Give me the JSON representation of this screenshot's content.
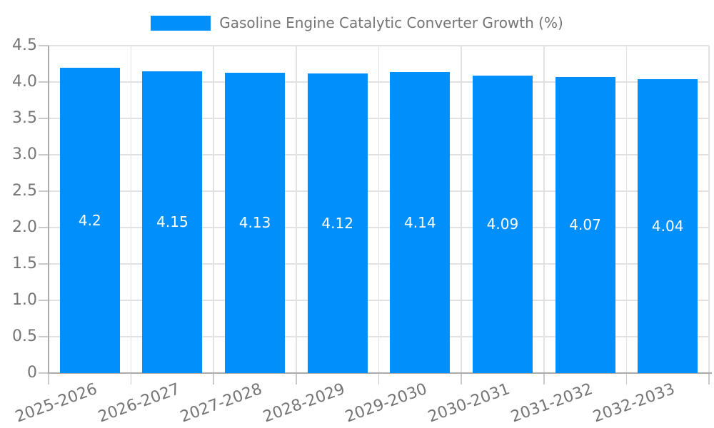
{
  "chart_data": {
    "type": "bar",
    "title": "Gasoline Engine Catalytic Converter Growth (%)",
    "categories": [
      "2025-2026",
      "2026-2027",
      "2027-2028",
      "2028-2029",
      "2029-2030",
      "2030-2031",
      "2031-2032",
      "2032-2033"
    ],
    "values": [
      4.2,
      4.15,
      4.13,
      4.12,
      4.14,
      4.09,
      4.07,
      4.04
    ],
    "bar_labels": [
      "4.2",
      "4.15",
      "4.13",
      "4.12",
      "4.14",
      "4.09",
      "4.07",
      "4.04"
    ],
    "xlabel": "",
    "ylabel": "",
    "ylim": [
      0,
      4.5
    ],
    "ytick_values": [
      0,
      0.5,
      1,
      1.5,
      2,
      2.5,
      3,
      3.5,
      4,
      4.5
    ],
    "ytick_labels": [
      "0",
      "0.5",
      "1.0",
      "1.5",
      "2.0",
      "2.5",
      "3.0",
      "3.5",
      "4.0",
      "4.5"
    ],
    "x_label_rotation_deg": -20,
    "grid": true,
    "legend_position": "top",
    "colors": {
      "bar": "#008FFB",
      "value_label": "#ffffff",
      "tick_label": "#757575",
      "gridline": "#e2e2e2",
      "tick_mark": "#c9c9c9",
      "axis_line": "#ababab",
      "background": "#ffffff"
    }
  }
}
